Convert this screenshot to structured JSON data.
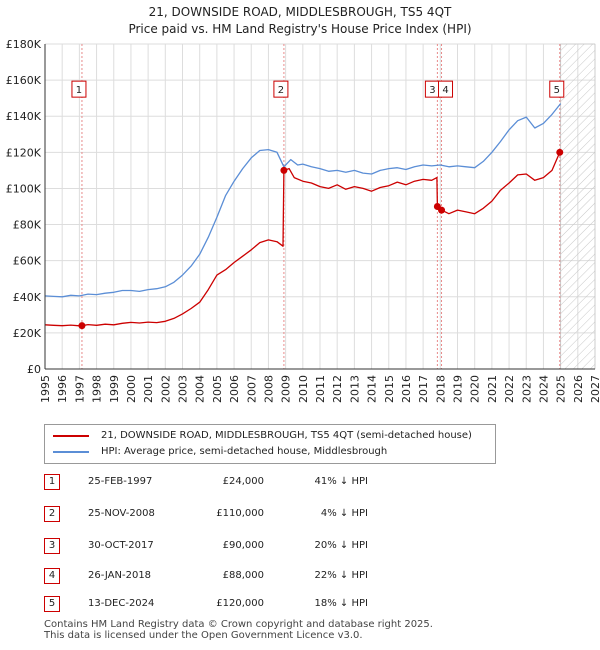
{
  "title_line1": "21, DOWNSIDE ROAD, MIDDLESBROUGH, TS5 4QT",
  "title_line2": "Price paid vs. HM Land Registry's House Price Index (HPI)",
  "colors": {
    "property": "#cc0000",
    "hpi": "#5b8ed6",
    "grid": "#dddddd",
    "vline": "#e88a8a"
  },
  "legend": {
    "property_label": "21, DOWNSIDE ROAD, MIDDLESBROUGH, TS5 4QT (semi-detached house)",
    "hpi_label": "HPI: Average price, semi-detached house, Middlesbrough"
  },
  "sales": [
    {
      "id": "1",
      "date": "25-FEB-1997",
      "price": "£24,000",
      "hpi": "41% ↓ HPI"
    },
    {
      "id": "2",
      "date": "25-NOV-2008",
      "price": "£110,000",
      "hpi": "4% ↓ HPI"
    },
    {
      "id": "3",
      "date": "30-OCT-2017",
      "price": "£90,000",
      "hpi": "20% ↓ HPI"
    },
    {
      "id": "4",
      "date": "26-JAN-2018",
      "price": "£88,000",
      "hpi": "22% ↓ HPI"
    },
    {
      "id": "5",
      "date": "13-DEC-2024",
      "price": "£120,000",
      "hpi": "18% ↓ HPI"
    }
  ],
  "footer_line1": "Contains HM Land Registry data © Crown copyright and database right 2025.",
  "footer_line2": "This data is licensed under the Open Government Licence v3.0.",
  "chart_data": {
    "type": "line",
    "xlim": [
      1995,
      2027
    ],
    "ylim": [
      0,
      180000
    ],
    "x_ticks": [
      1995,
      1996,
      1997,
      1998,
      1999,
      2000,
      2001,
      2002,
      2003,
      2004,
      2005,
      2006,
      2007,
      2008,
      2009,
      2010,
      2011,
      2012,
      2013,
      2014,
      2015,
      2016,
      2017,
      2018,
      2019,
      2020,
      2021,
      2022,
      2023,
      2024,
      2025,
      2026,
      2027
    ],
    "y_ticks": [
      0,
      20000,
      40000,
      60000,
      80000,
      100000,
      120000,
      140000,
      160000,
      180000
    ],
    "y_tick_labels": [
      "£0",
      "£20K",
      "£40K",
      "£60K",
      "£80K",
      "£100K",
      "£120K",
      "£140K",
      "£160K",
      "£180K"
    ],
    "grid": true,
    "forecast_from": 2025,
    "series": [
      {
        "name": "21, DOWNSIDE ROAD, MIDDLESBROUGH, TS5 4QT (semi-detached house)",
        "color": "#cc0000",
        "points": [
          [
            1995.0,
            24500
          ],
          [
            1995.5,
            24200
          ],
          [
            1996.0,
            24000
          ],
          [
            1996.5,
            24300
          ],
          [
            1997.0,
            23900
          ],
          [
            1997.15,
            24000
          ],
          [
            1997.5,
            24600
          ],
          [
            1998.0,
            24200
          ],
          [
            1998.5,
            24800
          ],
          [
            1999.0,
            24500
          ],
          [
            1999.5,
            25300
          ],
          [
            2000.0,
            25800
          ],
          [
            2000.5,
            25500
          ],
          [
            2001.0,
            26000
          ],
          [
            2001.5,
            25700
          ],
          [
            2002.0,
            26400
          ],
          [
            2002.5,
            28000
          ],
          [
            2003.0,
            30500
          ],
          [
            2003.5,
            33500
          ],
          [
            2004.0,
            37000
          ],
          [
            2004.5,
            44000
          ],
          [
            2005.0,
            52000
          ],
          [
            2005.5,
            55000
          ],
          [
            2006.0,
            59000
          ],
          [
            2006.5,
            62500
          ],
          [
            2007.0,
            66000
          ],
          [
            2007.5,
            70000
          ],
          [
            2008.0,
            71500
          ],
          [
            2008.5,
            70500
          ],
          [
            2008.85,
            68000
          ],
          [
            2008.9,
            110000
          ],
          [
            2009.2,
            111000
          ],
          [
            2009.5,
            106000
          ],
          [
            2010.0,
            104000
          ],
          [
            2010.5,
            103000
          ],
          [
            2011.0,
            101000
          ],
          [
            2011.5,
            100000
          ],
          [
            2012.0,
            102000
          ],
          [
            2012.5,
            99500
          ],
          [
            2013.0,
            101000
          ],
          [
            2013.5,
            100000
          ],
          [
            2014.0,
            98500
          ],
          [
            2014.5,
            100500
          ],
          [
            2015.0,
            101500
          ],
          [
            2015.5,
            103500
          ],
          [
            2016.0,
            102000
          ],
          [
            2016.5,
            104000
          ],
          [
            2017.0,
            105000
          ],
          [
            2017.5,
            104500
          ],
          [
            2017.8,
            106000
          ],
          [
            2017.83,
            90000
          ],
          [
            2018.07,
            88000
          ],
          [
            2018.5,
            86000
          ],
          [
            2019.0,
            88000
          ],
          [
            2019.5,
            87000
          ],
          [
            2020.0,
            86000
          ],
          [
            2020.5,
            89000
          ],
          [
            2021.0,
            93000
          ],
          [
            2021.5,
            99000
          ],
          [
            2022.0,
            103000
          ],
          [
            2022.5,
            107500
          ],
          [
            2023.0,
            108000
          ],
          [
            2023.5,
            104500
          ],
          [
            2024.0,
            106000
          ],
          [
            2024.5,
            110000
          ],
          [
            2024.95,
            120000
          ]
        ]
      },
      {
        "name": "HPI: Average price, semi-detached house, Middlesbrough",
        "color": "#5b8ed6",
        "points": [
          [
            1995.0,
            40500
          ],
          [
            1995.5,
            40200
          ],
          [
            1996.0,
            40000
          ],
          [
            1996.5,
            40800
          ],
          [
            1997.0,
            40500
          ],
          [
            1997.5,
            41500
          ],
          [
            1998.0,
            41200
          ],
          [
            1998.5,
            42000
          ],
          [
            1999.0,
            42500
          ],
          [
            1999.5,
            43500
          ],
          [
            2000.0,
            43500
          ],
          [
            2000.5,
            43000
          ],
          [
            2001.0,
            44000
          ],
          [
            2001.5,
            44500
          ],
          [
            2002.0,
            45500
          ],
          [
            2002.5,
            48000
          ],
          [
            2003.0,
            52000
          ],
          [
            2003.5,
            57000
          ],
          [
            2004.0,
            63500
          ],
          [
            2004.5,
            73000
          ],
          [
            2005.0,
            84000
          ],
          [
            2005.5,
            96000
          ],
          [
            2006.0,
            104000
          ],
          [
            2006.5,
            111000
          ],
          [
            2007.0,
            117000
          ],
          [
            2007.5,
            121000
          ],
          [
            2008.0,
            121500
          ],
          [
            2008.5,
            120000
          ],
          [
            2008.9,
            112000
          ],
          [
            2009.3,
            116000
          ],
          [
            2009.7,
            113000
          ],
          [
            2010.0,
            113500
          ],
          [
            2010.5,
            112000
          ],
          [
            2011.0,
            111000
          ],
          [
            2011.5,
            109500
          ],
          [
            2012.0,
            110000
          ],
          [
            2012.5,
            109000
          ],
          [
            2013.0,
            110000
          ],
          [
            2013.5,
            108500
          ],
          [
            2014.0,
            108000
          ],
          [
            2014.5,
            110000
          ],
          [
            2015.0,
            111000
          ],
          [
            2015.5,
            111500
          ],
          [
            2016.0,
            110500
          ],
          [
            2016.5,
            112000
          ],
          [
            2017.0,
            113000
          ],
          [
            2017.5,
            112500
          ],
          [
            2018.0,
            113000
          ],
          [
            2018.5,
            112000
          ],
          [
            2019.0,
            112500
          ],
          [
            2019.5,
            112000
          ],
          [
            2020.0,
            111500
          ],
          [
            2020.5,
            115000
          ],
          [
            2021.0,
            120000
          ],
          [
            2021.5,
            126000
          ],
          [
            2022.0,
            132500
          ],
          [
            2022.5,
            137500
          ],
          [
            2023.0,
            139500
          ],
          [
            2023.5,
            133500
          ],
          [
            2024.0,
            136000
          ],
          [
            2024.5,
            141000
          ],
          [
            2025.0,
            147000
          ]
        ]
      }
    ],
    "sale_markers": [
      {
        "label": "1",
        "x": 1997.15,
        "y": 24000
      },
      {
        "label": "2",
        "x": 2008.9,
        "y": 110000
      },
      {
        "label": "3",
        "x": 2017.83,
        "y": 90000
      },
      {
        "label": "4",
        "x": 2018.07,
        "y": 88000
      },
      {
        "label": "5",
        "x": 2024.95,
        "y": 120000
      }
    ]
  }
}
